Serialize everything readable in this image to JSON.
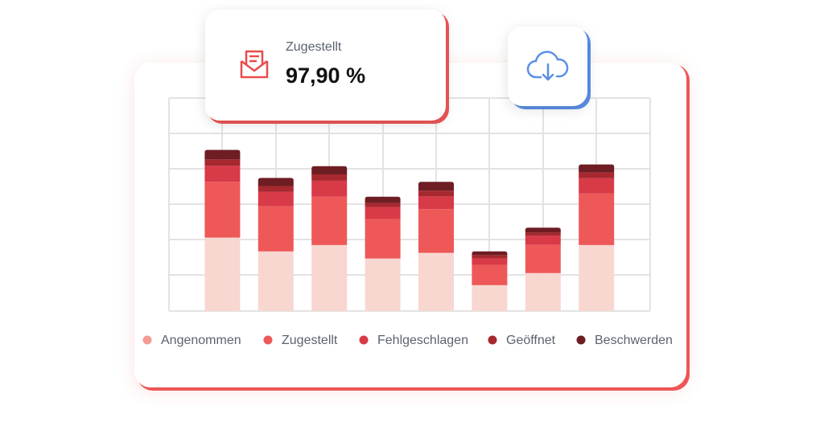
{
  "chart_data": {
    "type": "stacked-bar",
    "categories": [
      null,
      null,
      null,
      null,
      null,
      null,
      null,
      null
    ],
    "ylim": [
      0,
      6
    ],
    "series": [
      {
        "name": "Angenommen",
        "color": "#f8d7d1",
        "legend_color": "#f59a94",
        "values": [
          2.07,
          1.68,
          1.86,
          1.48,
          1.64,
          0.73,
          1.07,
          1.86
        ]
      },
      {
        "name": "Zugestellt",
        "color": "#ee5858",
        "values": [
          1.57,
          1.27,
          1.36,
          1.11,
          1.23,
          0.57,
          0.8,
          1.45
        ]
      },
      {
        "name": "Fehlgeschlagen",
        "color": "#d93a48",
        "values": [
          0.45,
          0.41,
          0.45,
          0.34,
          0.36,
          0.18,
          0.25,
          0.43
        ]
      },
      {
        "name": "Geöffnet",
        "color": "#a8282f",
        "values": [
          0.18,
          0.16,
          0.18,
          0.11,
          0.16,
          0.09,
          0.09,
          0.16
        ]
      },
      {
        "name": "Beschwerden",
        "color": "#6e1d22",
        "values": [
          0.27,
          0.23,
          0.23,
          0.18,
          0.25,
          0.11,
          0.14,
          0.23
        ]
      }
    ]
  },
  "kpi_card": {
    "label": "Zugestellt",
    "value": "97,90 %"
  }
}
